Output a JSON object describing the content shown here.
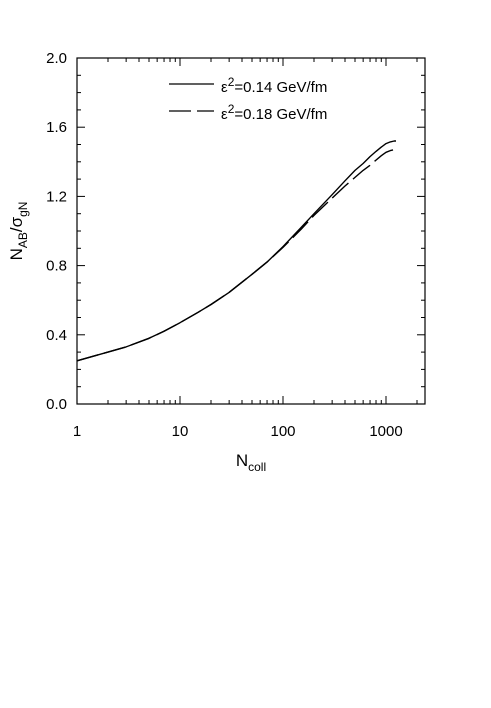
{
  "chart_data": {
    "type": "line",
    "x_scale": "log",
    "xlim": [
      1,
      2000
    ],
    "ylim": [
      0.0,
      2.0
    ],
    "x_ticks": [
      1,
      10,
      100,
      1000
    ],
    "x_tick_labels": [
      "1",
      "10",
      "100",
      "1000"
    ],
    "y_ticks": [
      0.0,
      0.4,
      0.8,
      1.2,
      1.6,
      2.0
    ],
    "y_tick_labels": [
      "0.0",
      "0.4",
      "0.8",
      "1.2",
      "1.6",
      "2.0"
    ],
    "xlabel": {
      "main": "N",
      "sub": "coll"
    },
    "ylabel": {
      "main": "N",
      "sub1": "AB",
      "sep": "/σ",
      "sub2": "gN"
    },
    "legend_position": "top",
    "grid": false,
    "series": [
      {
        "label": {
          "eps": "ε",
          "sup": "2",
          "rest": "=0.14 GeV/fm"
        },
        "style": "solid",
        "color": "#000000",
        "x": [
          1,
          2,
          3,
          5,
          7,
          10,
          15,
          20,
          30,
          50,
          70,
          100,
          150,
          200,
          300,
          400,
          500,
          600,
          700,
          800,
          900,
          1000,
          1100,
          1200,
          1250
        ],
        "y": [
          0.25,
          0.3,
          0.33,
          0.38,
          0.42,
          0.47,
          0.53,
          0.575,
          0.645,
          0.75,
          0.82,
          0.91,
          1.02,
          1.1,
          1.21,
          1.29,
          1.35,
          1.39,
          1.43,
          1.46,
          1.485,
          1.505,
          1.515,
          1.52,
          1.52
        ]
      },
      {
        "label": {
          "eps": "ε",
          "sup": "2",
          "rest": "=0.18 GeV/fm"
        },
        "style": "dashed",
        "color": "#000000",
        "x": [
          1,
          2,
          3,
          5,
          7,
          10,
          15,
          20,
          30,
          50,
          70,
          100,
          150,
          200,
          300,
          400,
          500,
          600,
          700,
          800,
          900,
          1000,
          1100,
          1200,
          1250
        ],
        "y": [
          0.25,
          0.3,
          0.33,
          0.38,
          0.42,
          0.47,
          0.53,
          0.575,
          0.645,
          0.75,
          0.82,
          0.905,
          1.01,
          1.09,
          1.19,
          1.26,
          1.31,
          1.35,
          1.38,
          1.41,
          1.435,
          1.455,
          1.465,
          1.47,
          1.47
        ]
      }
    ]
  }
}
